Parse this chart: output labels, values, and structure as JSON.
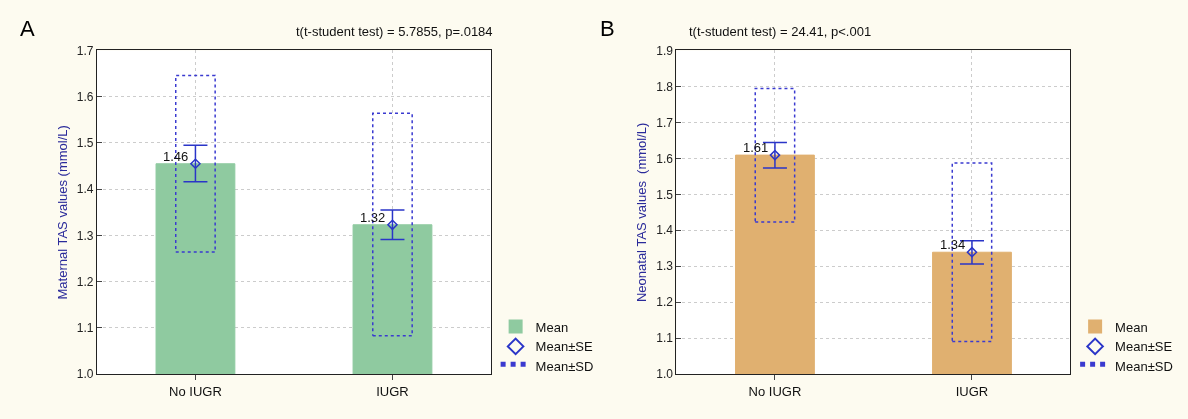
{
  "chart_data": [
    {
      "type": "bar",
      "title": "t(t-student test) = 5.7855, p=.0184",
      "ylabel": "Maternal TAS values (mmol/L)",
      "annotations": [
        "A"
      ],
      "categories": [
        "No IUGR",
        "IUGR"
      ],
      "ylim": [
        1.0,
        1.7
      ],
      "yticks": [
        {
          "value": 1,
          "label": "1.0"
        },
        1.1,
        1.2,
        1.3,
        1.4,
        1.5,
        1.6,
        1.7
      ],
      "grid": true,
      "legend": "bottom right",
      "series": [
        {
          "name": "Mean",
          "color": "#8fcaa0",
          "values": [
            1.455,
            1.323
          ],
          "value_labels": [
            "1.46",
            "1.32"
          ]
        },
        {
          "name": "Mean±SE",
          "type": "scatter",
          "marker": "diamond",
          "color": "#2a35c8",
          "values": [
            1.455,
            1.323
          ],
          "errors": [
            [
              1.416,
              1.495
            ],
            [
              1.291,
              1.355
            ]
          ]
        },
        {
          "name": "Mean±SD",
          "line_style": "dotted",
          "color": "#3a3ad0",
          "base": [
            1.264,
            1.083
          ],
          "values": [
            0.382,
            0.481
          ]
        }
      ]
    },
    {
      "type": "bar",
      "title": "t(t-student test) = 24.41, p<.001",
      "ylabel": "Neonatal TAS values  (mmol/L)",
      "annotations": [
        "B"
      ],
      "categories": [
        "No IUGR",
        "IUGR"
      ],
      "ylim": [
        1.0,
        1.9
      ],
      "yticks": [
        {
          "value": 1,
          "label": "1.0"
        },
        1.1,
        1.2,
        1.3,
        1.4,
        1.5,
        1.6,
        1.7,
        1.8,
        1.9
      ],
      "grid": true,
      "legend": "bottom right",
      "series": [
        {
          "name": "Mean",
          "color": "#e0b070",
          "values": [
            1.609,
            1.339
          ],
          "value_labels": [
            "1.61",
            "1.34"
          ]
        },
        {
          "name": "Mean±SE",
          "type": "scatter",
          "marker": "diamond",
          "color": "#2a35c8",
          "values": [
            1.609,
            1.339
          ],
          "errors": [
            [
              1.573,
              1.644
            ],
            [
              1.306,
              1.371
            ]
          ]
        },
        {
          "name": "Mean±SD",
          "line_style": "dotted",
          "color": "#3a3ad0",
          "base": [
            1.423,
            1.091
          ],
          "values": [
            0.371,
            0.496
          ]
        }
      ]
    }
  ]
}
